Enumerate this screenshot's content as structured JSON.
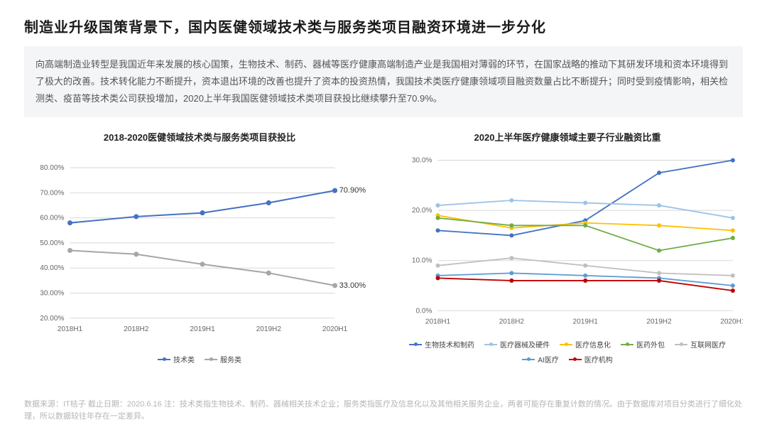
{
  "title": "制造业升级国策背景下，国内医健领域技术类与服务类项目融资环境进一步分化",
  "description": {
    "line1": "向高端制造业转型是我国近年来发展的核心国策，生物技术、制药、器械等医疗健康高端制造产业是我国相对薄弱的环节，在国家战略的推动下其研发环境和资本环境得到了极大的改善。技术转化能力不断提升，资本退出环境的改善也提升了资本的投资热情，我国技术类医疗健康领域项目融资数量占比不断提升；同时受到疫情影响，相关检测类、疫苗等技术类公司获投增加，2020上半年我国医健领域技术类项目获投比继续攀升至70.9%。"
  },
  "chart_left": {
    "title": "2018-2020医健领域技术类与服务类项目获投比",
    "type": "line",
    "categories": [
      "2018H1",
      "2018H2",
      "2019H1",
      "2019H2",
      "2020H1"
    ],
    "ylim": [
      20,
      80
    ],
    "ytick_step": 10,
    "y_format_suffix": ".00%",
    "background_color": "#ffffff",
    "grid_color": "#d9d9d9",
    "axis_fontsize": 10,
    "axis_color": "#666666",
    "line_width": 2,
    "marker_radius": 3.5,
    "series": [
      {
        "name": "技术类",
        "color": "#4472c4",
        "values": [
          58.0,
          60.5,
          62.0,
          66.0,
          70.9
        ],
        "end_label": "70.90%"
      },
      {
        "name": "服务类",
        "color": "#a6a6a6",
        "values": [
          47.0,
          45.5,
          41.5,
          38.0,
          33.0
        ],
        "end_label": "33.00%"
      }
    ]
  },
  "chart_right": {
    "title": "2020上半年医疗健康领域主要子行业融资比重",
    "type": "line",
    "categories": [
      "2018H1",
      "2018H2",
      "2019H1",
      "2019H2",
      "2020H1"
    ],
    "ylim": [
      0,
      30
    ],
    "ytick_step": 10,
    "y_format_suffix": ".0%",
    "background_color": "#ffffff",
    "grid_color": "#d9d9d9",
    "axis_fontsize": 10,
    "axis_color": "#666666",
    "line_width": 1.8,
    "marker_radius": 3,
    "series": [
      {
        "name": "生物技术和制药",
        "color": "#4472c4",
        "values": [
          16.0,
          15.0,
          18.0,
          27.5,
          30.0
        ]
      },
      {
        "name": "医疗器械及硬件",
        "color": "#9dc3e6",
        "values": [
          21.0,
          22.0,
          21.5,
          21.0,
          18.5
        ]
      },
      {
        "name": "医疗信息化",
        "color": "#ffc000",
        "values": [
          19.0,
          16.5,
          17.5,
          17.0,
          16.0
        ]
      },
      {
        "name": "医药外包",
        "color": "#70ad47",
        "values": [
          18.5,
          17.0,
          17.0,
          12.0,
          14.5
        ]
      },
      {
        "name": "互联网医疗",
        "color": "#bfbfbf",
        "values": [
          9.0,
          10.5,
          9.0,
          7.5,
          7.0
        ]
      },
      {
        "name": "AI医疗",
        "color": "#5b9bd5",
        "values": [
          7.0,
          7.5,
          7.0,
          6.5,
          5.0
        ]
      },
      {
        "name": "医疗机构",
        "color": "#c00000",
        "values": [
          6.5,
          6.0,
          6.0,
          6.0,
          4.0
        ]
      }
    ]
  },
  "footnote": "数据来源：IT桔子 截止日期：2020.6.16 注：技术类指生物技术、制药、器械相关技术企业；服务类指医疗及信息化以及其他相关服务企业，两者可能存在重复计数的情况。由于数据库对项目分类进行了细化处理，所以数据较往年存在一定差异。"
}
